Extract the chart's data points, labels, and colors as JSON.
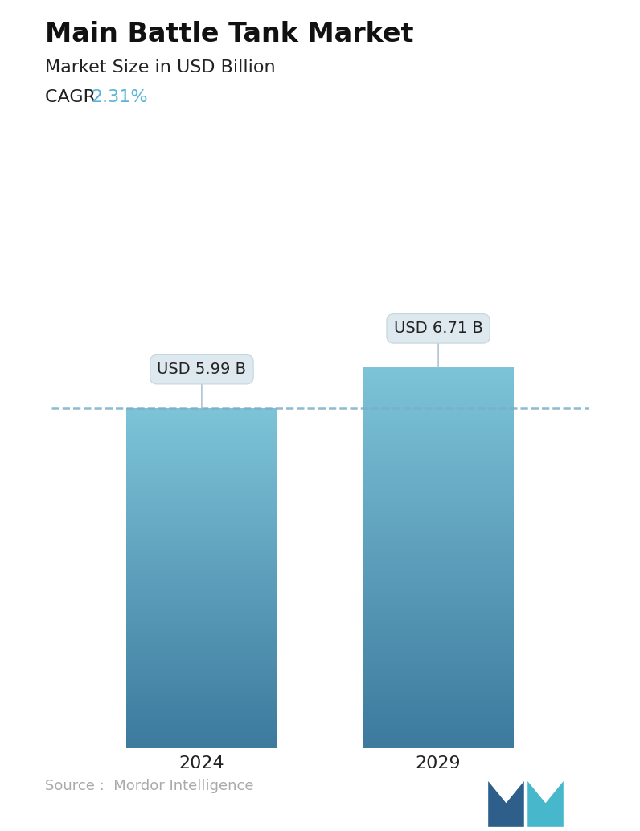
{
  "title": "Main Battle Tank Market",
  "subtitle": "Market Size in USD Billion",
  "cagr_label": "CAGR ",
  "cagr_value": "2.31%",
  "cagr_color": "#5ab4d6",
  "categories": [
    "2024",
    "2029"
  ],
  "values": [
    5.99,
    6.71
  ],
  "bar_labels": [
    "USD 5.99 B",
    "USD 6.71 B"
  ],
  "bar_top_color": "#7dc4d8",
  "bar_bottom_color": "#3d7a9e",
  "dashed_line_color": "#7baec8",
  "dashed_line_value": 5.99,
  "background_color": "#ffffff",
  "source_text": "Source :  Mordor Intelligence",
  "source_color": "#aaaaaa",
  "title_fontsize": 24,
  "subtitle_fontsize": 16,
  "cagr_fontsize": 16,
  "bar_label_fontsize": 14,
  "xtick_fontsize": 16,
  "source_fontsize": 13,
  "ylim": [
    0,
    8.5
  ],
  "bar_width": 0.28,
  "x_positions": [
    0.28,
    0.72
  ]
}
